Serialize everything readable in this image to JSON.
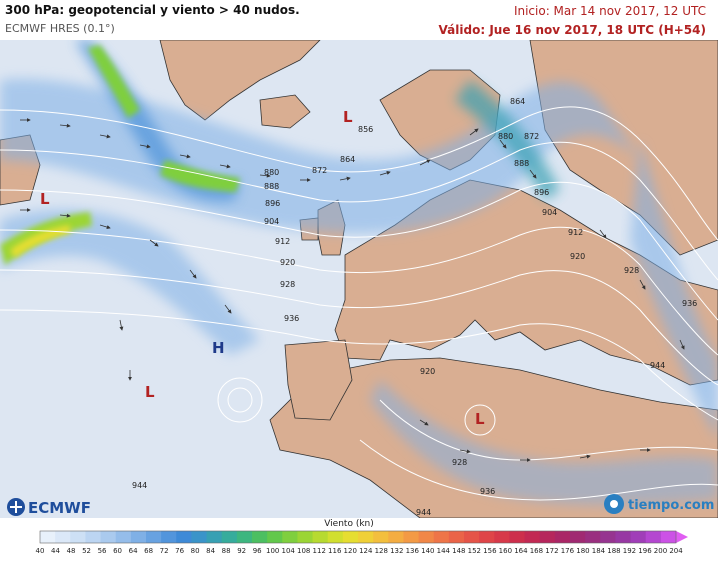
{
  "header": {
    "title": "300 hPa: geopotencial y viento > 40 nudos.",
    "model": "ECMWF HRES (0.1°)",
    "init": "Inicio: Mar 14 nov 2017, 12 UTC",
    "valid": "Válido: Jue 16 nov 2017, 18 UTC (H+54)"
  },
  "map": {
    "contour_labels": [
      "864",
      "856",
      "864",
      "872",
      "880",
      "888",
      "896",
      "904",
      "912",
      "920",
      "928",
      "936",
      "944",
      "880",
      "872",
      "888",
      "896",
      "904",
      "912",
      "920",
      "928",
      "936",
      "944",
      "920",
      "928",
      "936",
      "944"
    ],
    "pressure_centers": [
      {
        "symbol": "L",
        "color": "#b22222"
      },
      {
        "symbol": "L",
        "color": "#b22222"
      },
      {
        "symbol": "L",
        "color": "#b22222"
      },
      {
        "symbol": "L",
        "color": "#b22222"
      },
      {
        "symbol": "H",
        "color": "#1e3a8a"
      }
    ],
    "logos": {
      "ecmwf": "ECMWF",
      "tiempo": "tiempo.com"
    }
  },
  "legend": {
    "title": "Viento (kn)",
    "ticks": [
      "40",
      "44",
      "48",
      "52",
      "56",
      "60",
      "64",
      "68",
      "72",
      "76",
      "80",
      "84",
      "88",
      "92",
      "96",
      "100",
      "104",
      "108",
      "112",
      "116",
      "120",
      "124",
      "128",
      "132",
      "136",
      "140",
      "144",
      "148",
      "152",
      "156",
      "160",
      "164",
      "168",
      "172",
      "176",
      "180",
      "184",
      "188",
      "192",
      "196",
      "200",
      "204"
    ],
    "colors": [
      "#e8f1fb",
      "#dbe8f8",
      "#cde0f5",
      "#bcd5f2",
      "#aacaee",
      "#95bdea",
      "#7fb0e6",
      "#68a2e1",
      "#5295dc",
      "#3e8ad7",
      "#3a94c9",
      "#37a0b3",
      "#36ac9c",
      "#3db67f",
      "#4cbf61",
      "#62c84b",
      "#7fcf3e",
      "#9bd535",
      "#b7da30",
      "#d1df2f",
      "#e6de31",
      "#f0d037",
      "#f3bf3d",
      "#f4ad42",
      "#f39a45",
      "#f18747",
      "#ee7548",
      "#ea6448",
      "#e55448",
      "#df4548",
      "#d73949",
      "#cd2f4c",
      "#c22953",
      "#b6265c",
      "#aa2666",
      "#a02a72",
      "#9a2f80",
      "#963490",
      "#9738a3",
      "#a03eb8",
      "#b447d0",
      "#cc52e6"
    ]
  }
}
